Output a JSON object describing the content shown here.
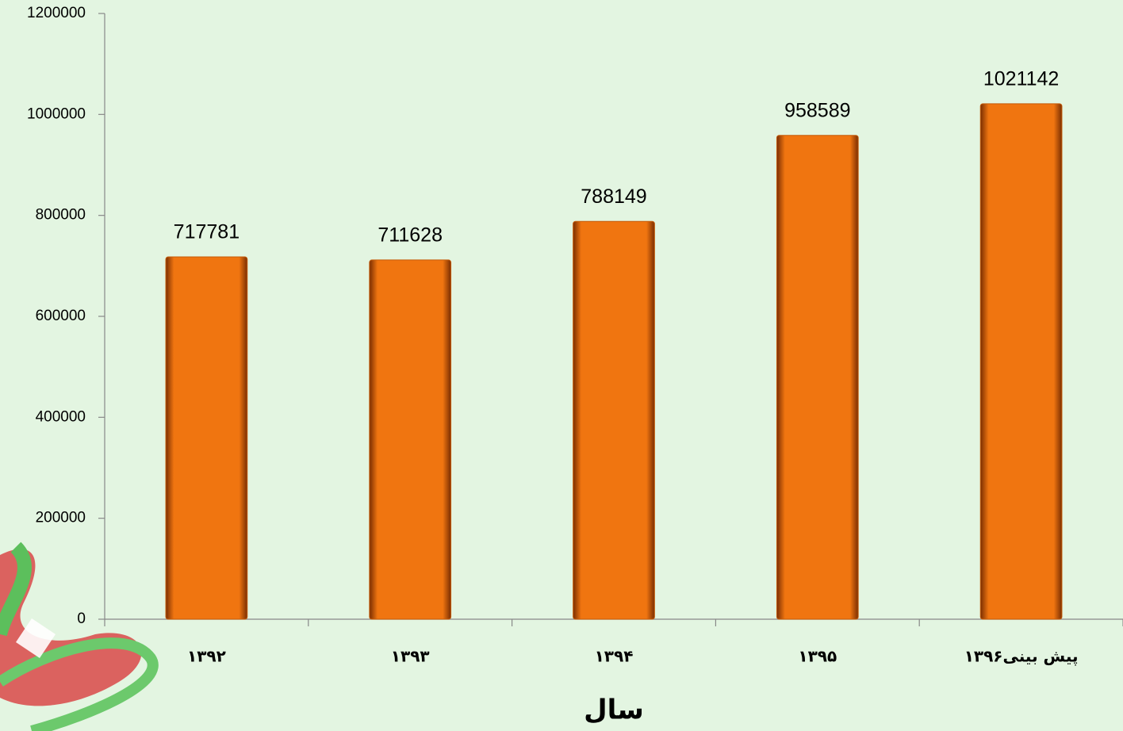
{
  "chart_data": {
    "type": "bar",
    "x_label": "سال",
    "categories": [
      "۱۳۹۲",
      "۱۳۹۳",
      "۱۳۹۴",
      "۱۳۹۵",
      "۱۳۹۶پیش بینی"
    ],
    "values": [
      717781,
      711628,
      788149,
      958589,
      1021142
    ],
    "color": "#f07510",
    "ylim": [
      0,
      1200000
    ],
    "yticks": [
      0,
      200000,
      400000,
      600000,
      800000,
      1000000,
      1200000
    ],
    "grid": false
  }
}
